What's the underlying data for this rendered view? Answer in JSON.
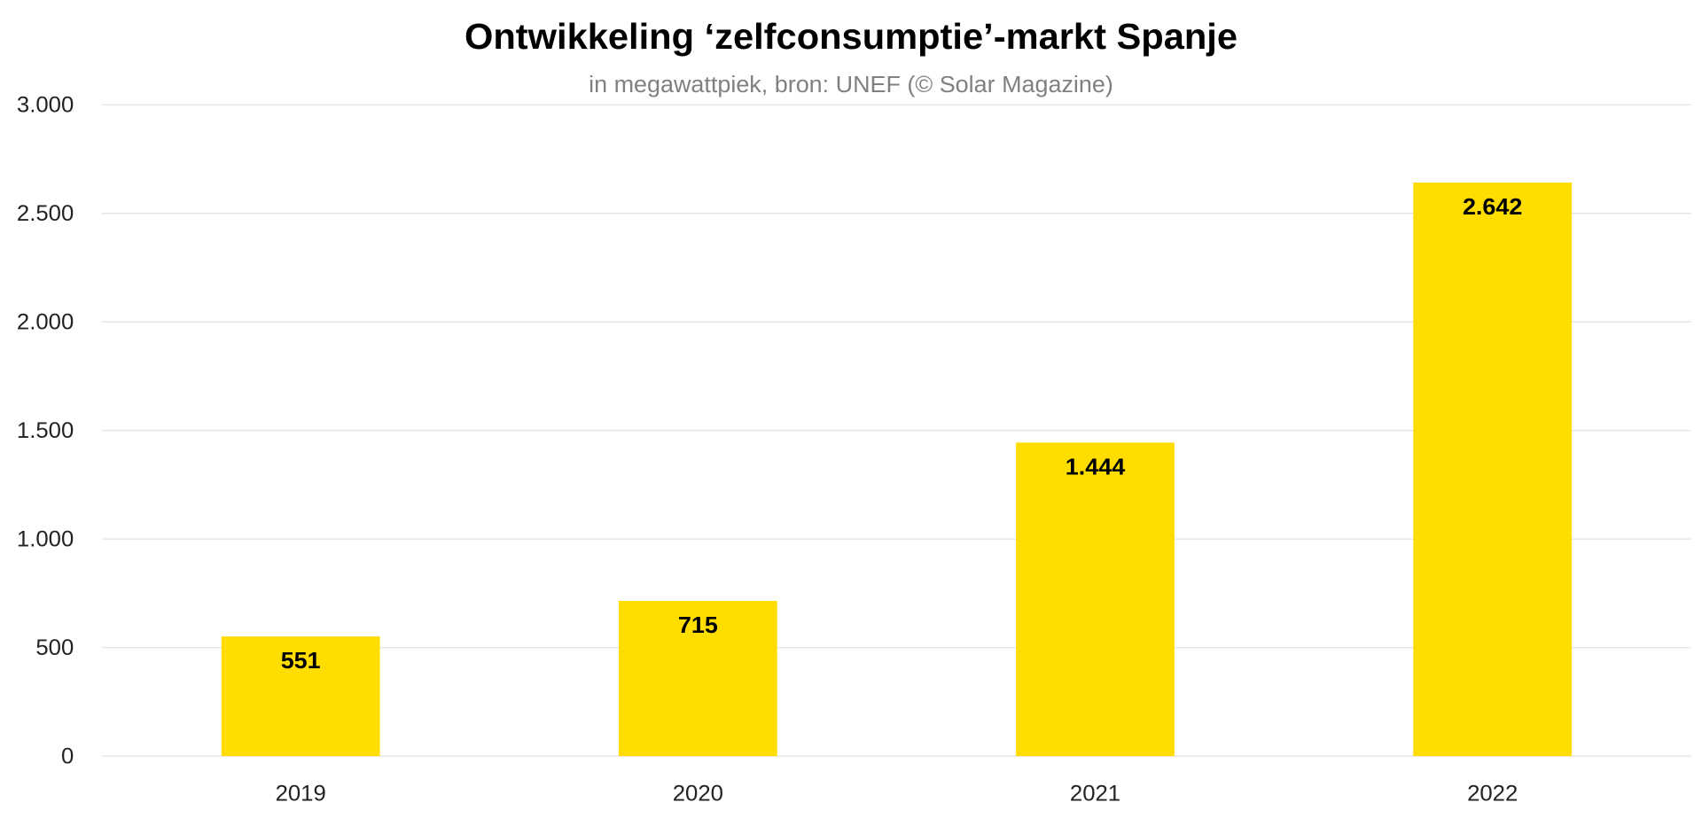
{
  "chart_data": {
    "type": "bar",
    "title": "Ontwikkeling ‘zelfconsumptie’-markt Spanje",
    "subtitle": "in megawattpiek, bron: UNEF (© Solar Magazine)",
    "xlabel": "",
    "ylabel": "",
    "categories": [
      "2019",
      "2020",
      "2021",
      "2022"
    ],
    "values": [
      551,
      715,
      1444,
      2642
    ],
    "data_labels": [
      "551",
      "715",
      "1.444",
      "2.642"
    ],
    "ylim": [
      0,
      3000
    ],
    "yticks": [
      0,
      500,
      1000,
      1500,
      2000,
      2500,
      3000
    ],
    "ytick_labels": [
      "0",
      "500",
      "1.000",
      "1.500",
      "2.000",
      "2.500",
      "3.000"
    ],
    "grid": true,
    "legend": "none",
    "bar_color": "#FFDD00"
  }
}
